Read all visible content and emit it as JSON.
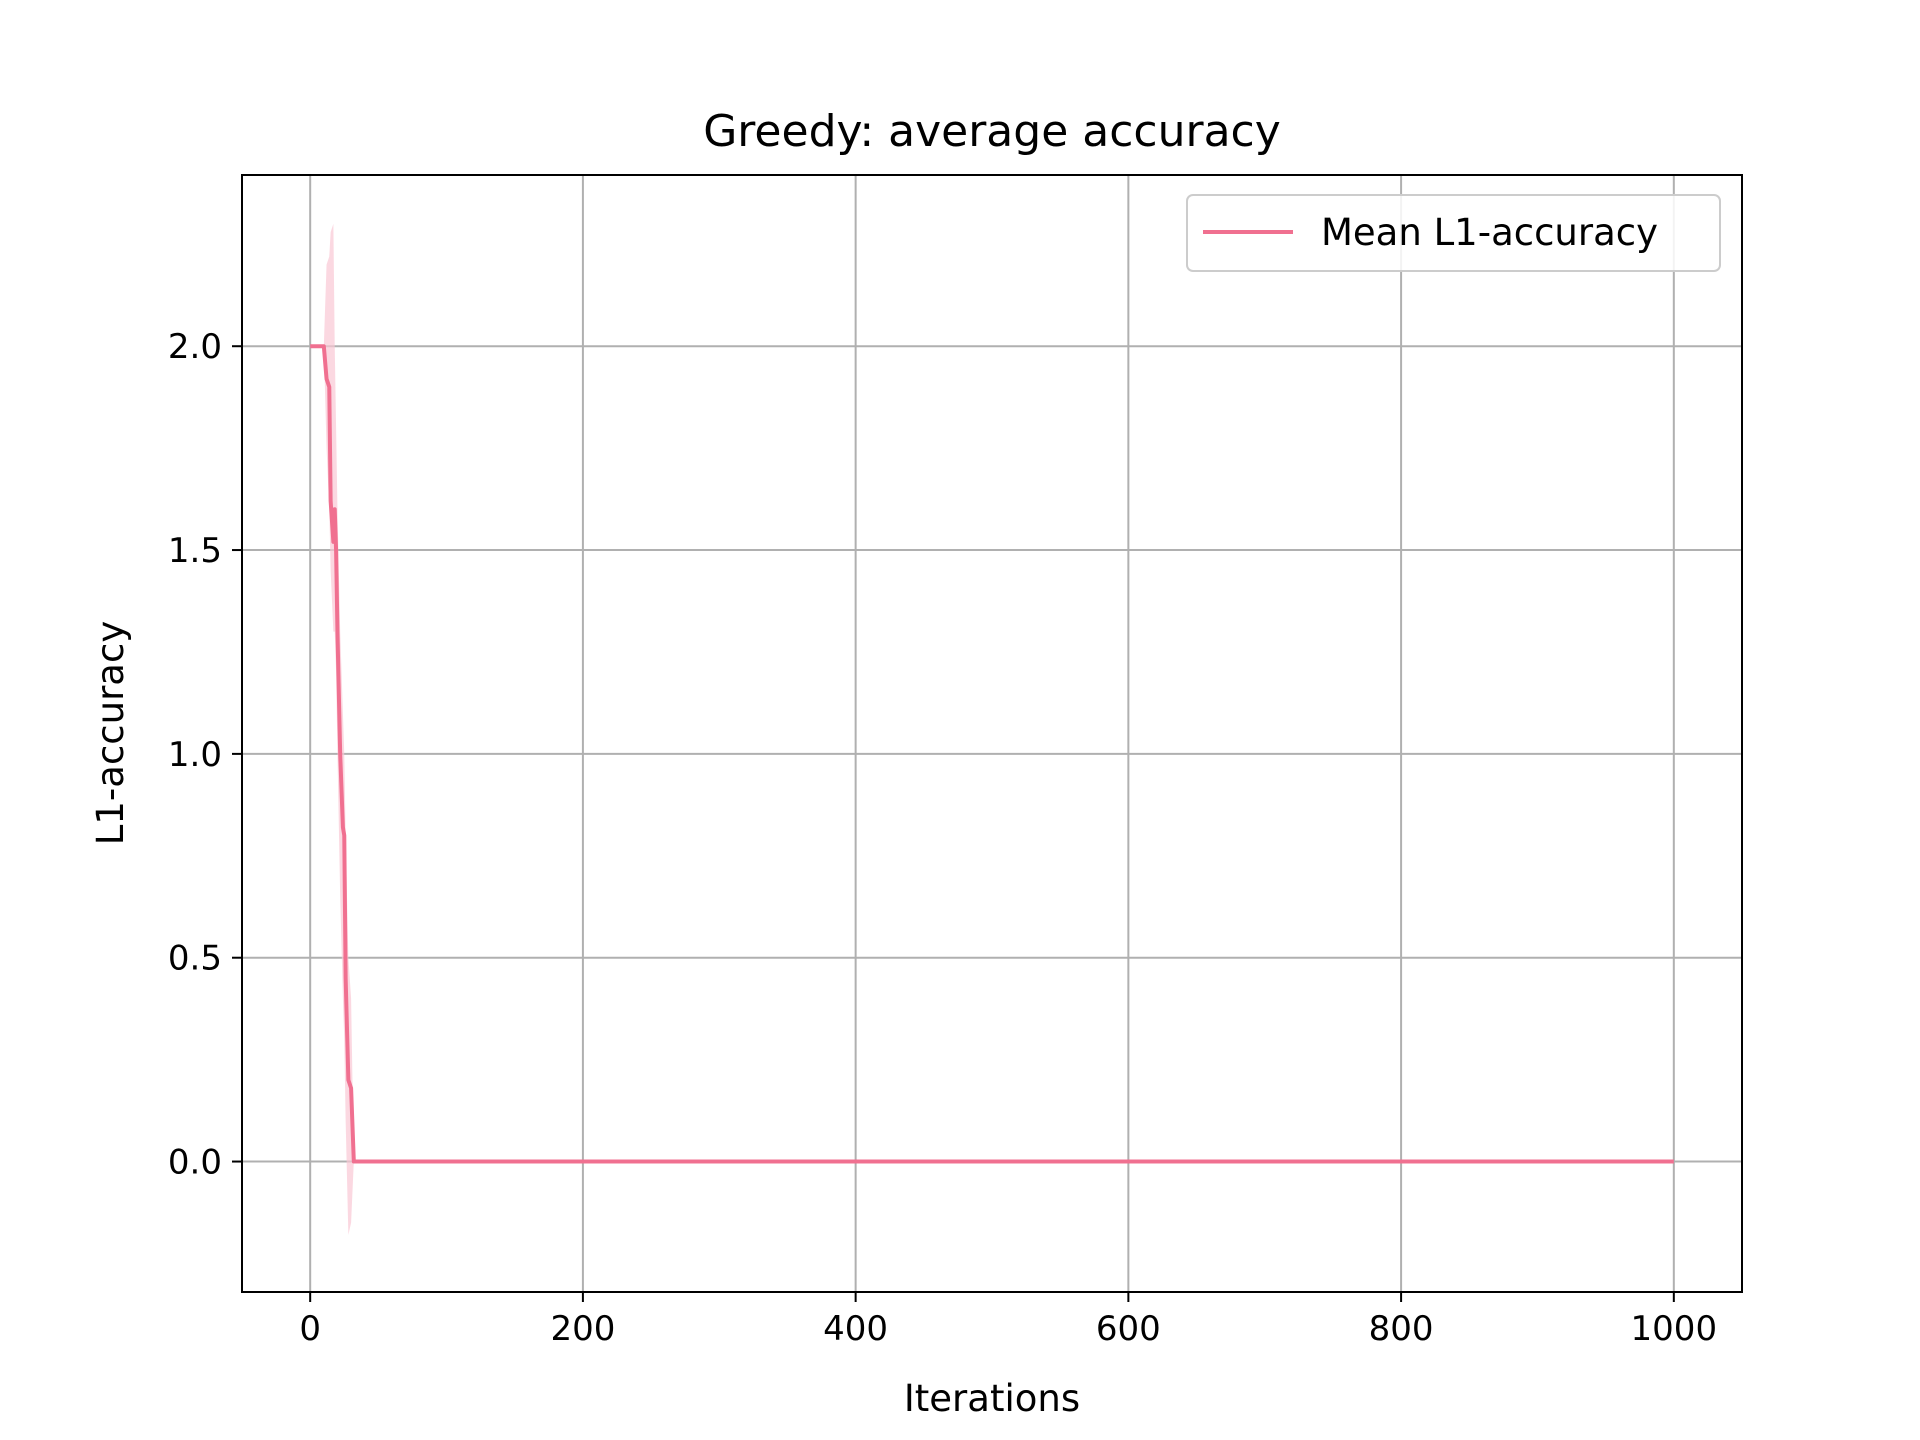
{
  "chart_data": {
    "type": "line",
    "title": "Greedy: average accuracy",
    "xlabel": "Iterations",
    "ylabel": "L1-accuracy",
    "xlim": [
      -50,
      1050
    ],
    "ylim": [
      -0.32,
      2.42
    ],
    "xticks": [
      0,
      200,
      400,
      600,
      800,
      1000
    ],
    "yticks": [
      0.0,
      0.5,
      1.0,
      1.5,
      2.0
    ],
    "xtick_labels": [
      "0",
      "200",
      "400",
      "600",
      "800",
      "1000"
    ],
    "ytick_labels": [
      "0.0",
      "0.5",
      "1.0",
      "1.5",
      "2.0"
    ],
    "grid": true,
    "legend_position": "top-right",
    "series": [
      {
        "name": "Mean L1-accuracy",
        "color": "#f07090",
        "band_color": "#f9c8d4",
        "x": [
          0,
          10,
          12,
          14,
          15,
          17,
          18,
          19,
          20,
          22,
          24,
          25,
          26,
          28,
          30,
          32,
          40,
          100,
          200,
          400,
          600,
          800,
          1000
        ],
        "y": [
          2.0,
          2.0,
          1.92,
          1.9,
          1.62,
          1.52,
          1.6,
          1.5,
          1.3,
          1.0,
          0.82,
          0.8,
          0.45,
          0.2,
          0.18,
          0.0,
          0.0,
          0.0,
          0.0,
          0.0,
          0.0,
          0.0,
          0.0
        ],
        "band_lower": [
          2.0,
          2.0,
          1.75,
          1.6,
          1.45,
          1.3,
          1.3,
          1.2,
          1.0,
          0.65,
          0.4,
          0.3,
          0.1,
          -0.18,
          -0.15,
          0.0,
          0.0,
          0.0,
          0.0,
          0.0,
          0.0,
          0.0,
          0.0
        ],
        "band_upper": [
          2.0,
          2.0,
          2.2,
          2.22,
          2.28,
          2.3,
          2.0,
          1.8,
          1.6,
          1.3,
          1.1,
          1.0,
          0.8,
          0.5,
          0.4,
          0.0,
          0.0,
          0.0,
          0.0,
          0.0,
          0.0,
          0.0,
          0.0
        ]
      }
    ]
  }
}
